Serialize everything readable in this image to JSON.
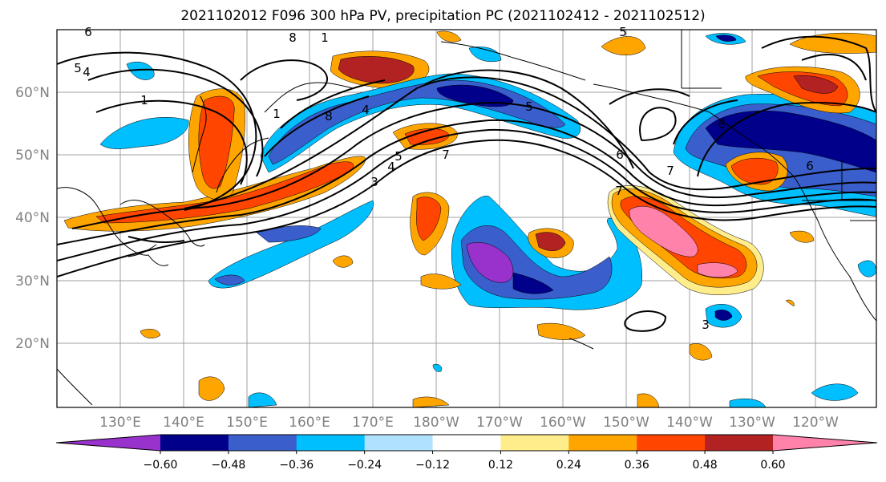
{
  "title": "2021102012 F096 300 hPa PV, precipitation PC (2021102412 - 2021102512)",
  "map": {
    "lon_labels": [
      "130°E",
      "140°E",
      "150°E",
      "160°E",
      "170°E",
      "180°W",
      "170°W",
      "160°W",
      "150°W",
      "140°W",
      "130°W",
      "120°W"
    ],
    "lat_labels": [
      "60°N",
      "50°N",
      "40°N",
      "30°N",
      "20°N"
    ],
    "colors": {
      "purple": "#9932cc",
      "navy": "#00008b",
      "royal": "#3a5fcd",
      "sky": "#00bfff",
      "lightsky": "#b0e2ff",
      "yellow": "#ffec8b",
      "orange": "#ffa500",
      "red": "#ff4500",
      "brick": "#b22222",
      "pink": "#ff82ab",
      "contour": "#000000",
      "grid": "#a0a0a0",
      "coast": "#000000"
    },
    "contour_labels": [
      "6",
      "5",
      "4",
      "1",
      "8",
      "1",
      "1",
      "8",
      "4",
      "5",
      "3",
      "4",
      "5",
      "7",
      "5",
      "6",
      "7",
      "6",
      "7",
      "6",
      "3"
    ]
  },
  "colorbar": {
    "colors": [
      "#9932cc",
      "#00008b",
      "#3a5fcd",
      "#00bfff",
      "#b0e2ff",
      "#ffffff",
      "#ffec8b",
      "#ffa500",
      "#ff4500",
      "#b22222",
      "#ff82ab"
    ],
    "ticks": [
      "−0.60",
      "−0.48",
      "−0.36",
      "−0.24",
      "−0.12",
      "0.12",
      "0.24",
      "0.36",
      "0.48",
      "0.60"
    ]
  }
}
